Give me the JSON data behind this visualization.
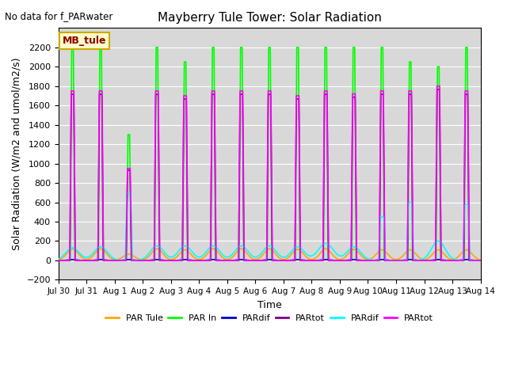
{
  "title": "Mayberry Tule Tower: Solar Radiation",
  "subtitle": "No data for f_PARwater",
  "xlabel": "Time",
  "ylabel": "Solar Radiation (W/m2 and umol/m2/s)",
  "ylim": [
    -200,
    2400
  ],
  "yticks": [
    -200,
    0,
    200,
    400,
    600,
    800,
    1000,
    1200,
    1400,
    1600,
    1800,
    2000,
    2200
  ],
  "bg_color": "#d8d8d8",
  "legend_label": "MB_tule",
  "series": [
    {
      "name": "PAR Tule",
      "color": "#ffa500",
      "lw": 1.2
    },
    {
      "name": "PAR In",
      "color": "#00ff00",
      "lw": 1.2
    },
    {
      "name": "PARdif",
      "color": "#0000cc",
      "lw": 1.2
    },
    {
      "name": "PARtot",
      "color": "#800080",
      "lw": 1.2
    },
    {
      "name": "PARdif",
      "color": "#00ffff",
      "lw": 1.2
    },
    {
      "name": "PARtot",
      "color": "#ff00ff",
      "lw": 1.2
    }
  ],
  "xtick_labels": [
    "Jul 30",
    "Jul 31",
    "Aug 1",
    "Aug 2",
    "Aug 3",
    "Aug 4",
    "Aug 5",
    "Aug 6",
    "Aug 7",
    "Aug 8",
    "Aug 9",
    "Aug 10",
    "Aug 11",
    "Aug 12",
    "Aug 13",
    "Aug 14"
  ],
  "figsize": [
    6.4,
    4.8
  ],
  "dpi": 100
}
